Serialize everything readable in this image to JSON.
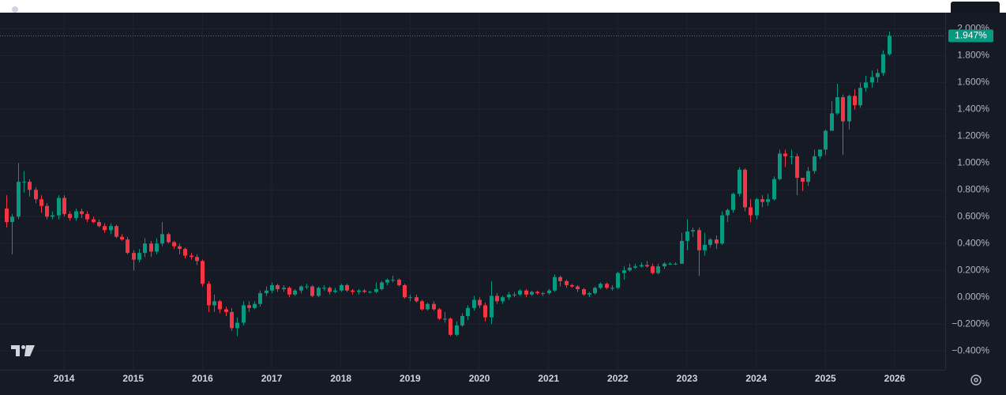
{
  "chart_data": {
    "type": "candlestick",
    "up_color": "#089981",
    "down_color": "#f23645",
    "grid": true,
    "xlim": [
      2013.075,
      2026.73
    ],
    "xticks": [
      2014,
      2015,
      2016,
      2017,
      2018,
      2019,
      2020,
      2021,
      2022,
      2023,
      2024,
      2025,
      2026
    ],
    "ylim": [
      -0.54,
      2.12
    ],
    "yticks": [
      {
        "value": -0.4,
        "label": "−0.400%"
      },
      {
        "value": -0.2,
        "label": "−0.200%"
      },
      {
        "value": 0,
        "label": "0.000%"
      },
      {
        "value": 0.2,
        "label": "0.200%"
      },
      {
        "value": 0.4,
        "label": "0.400%"
      },
      {
        "value": 0.6,
        "label": "0.600%"
      },
      {
        "value": 0.8,
        "label": "0.800%"
      },
      {
        "value": 1.0,
        "label": "1.000%"
      },
      {
        "value": 1.2,
        "label": "1.200%"
      },
      {
        "value": 1.4,
        "label": "1.400%"
      },
      {
        "value": 1.6,
        "label": "1.600%"
      },
      {
        "value": 1.8,
        "label": "1.800%"
      },
      {
        "value": 2.0,
        "label": "2.000%"
      }
    ],
    "last_price": {
      "value": 1.947,
      "label": "1.947%"
    },
    "x": [
      2013.167,
      2013.25,
      2013.333,
      2013.417,
      2013.5,
      2013.583,
      2013.667,
      2013.75,
      2013.833,
      2013.917,
      2014.0,
      2014.083,
      2014.167,
      2014.25,
      2014.333,
      2014.417,
      2014.5,
      2014.583,
      2014.667,
      2014.75,
      2014.833,
      2014.917,
      2015.0,
      2015.083,
      2015.167,
      2015.25,
      2015.333,
      2015.417,
      2015.5,
      2015.583,
      2015.667,
      2015.75,
      2015.833,
      2015.917,
      2016.0,
      2016.083,
      2016.167,
      2016.25,
      2016.333,
      2016.417,
      2016.5,
      2016.583,
      2016.667,
      2016.75,
      2016.833,
      2016.917,
      2017.0,
      2017.083,
      2017.167,
      2017.25,
      2017.333,
      2017.417,
      2017.5,
      2017.583,
      2017.667,
      2017.75,
      2017.833,
      2017.917,
      2018.0,
      2018.083,
      2018.167,
      2018.25,
      2018.333,
      2018.417,
      2018.5,
      2018.583,
      2018.667,
      2018.75,
      2018.833,
      2018.917,
      2019.0,
      2019.083,
      2019.167,
      2019.25,
      2019.333,
      2019.417,
      2019.5,
      2019.583,
      2019.667,
      2019.75,
      2019.833,
      2019.917,
      2020.0,
      2020.083,
      2020.167,
      2020.25,
      2020.333,
      2020.417,
      2020.5,
      2020.583,
      2020.667,
      2020.75,
      2020.833,
      2020.917,
      2021.0,
      2021.083,
      2021.167,
      2021.25,
      2021.333,
      2021.417,
      2021.5,
      2021.583,
      2021.667,
      2021.75,
      2021.833,
      2021.917,
      2022.0,
      2022.083,
      2022.167,
      2022.25,
      2022.333,
      2022.417,
      2022.5,
      2022.583,
      2022.667,
      2022.75,
      2022.833,
      2022.917,
      2023.0,
      2023.083,
      2023.167,
      2023.25,
      2023.333,
      2023.417,
      2023.5,
      2023.583,
      2023.667,
      2023.75,
      2023.833,
      2023.917,
      2024.0,
      2024.083,
      2024.167,
      2024.25,
      2024.333,
      2024.417,
      2024.5,
      2024.583,
      2024.667,
      2024.75,
      2024.833,
      2024.917,
      2025.0,
      2025.083,
      2025.167,
      2025.25,
      2025.333,
      2025.417,
      2025.5,
      2025.583,
      2025.667,
      2025.75,
      2025.833,
      2025.917
    ],
    "open": [
      0.66,
      0.56,
      0.6,
      0.86,
      0.86,
      0.8,
      0.73,
      0.68,
      0.6,
      0.61,
      0.74,
      0.62,
      0.59,
      0.64,
      0.62,
      0.58,
      0.56,
      0.53,
      0.5,
      0.53,
      0.45,
      0.43,
      0.33,
      0.28,
      0.33,
      0.4,
      0.34,
      0.4,
      0.47,
      0.41,
      0.38,
      0.36,
      0.31,
      0.3,
      0.27,
      0.1,
      -0.06,
      -0.03,
      -0.09,
      -0.11,
      -0.23,
      -0.19,
      -0.06,
      -0.08,
      -0.05,
      0.03,
      0.05,
      0.09,
      0.06,
      0.07,
      0.02,
      0.05,
      0.08,
      0.08,
      0.01,
      0.07,
      0.07,
      0.04,
      0.05,
      0.09,
      0.05,
      0.04,
      0.05,
      0.04,
      0.04,
      0.06,
      0.11,
      0.13,
      0.13,
      0.09,
      0.0,
      0.0,
      -0.03,
      -0.09,
      -0.05,
      -0.09,
      -0.16,
      -0.16,
      -0.28,
      -0.21,
      -0.14,
      -0.08,
      -0.02,
      -0.06,
      -0.15,
      0.01,
      -0.03,
      0.0,
      0.02,
      0.02,
      0.05,
      0.02,
      0.04,
      0.03,
      0.03,
      0.05,
      0.15,
      0.12,
      0.09,
      0.08,
      0.06,
      0.02,
      0.03,
      0.07,
      0.1,
      0.07,
      0.07,
      0.18,
      0.2,
      0.22,
      0.23,
      0.24,
      0.23,
      0.18,
      0.23,
      0.25,
      0.25,
      0.25,
      0.42,
      0.49,
      0.5,
      0.35,
      0.39,
      0.43,
      0.4,
      0.61,
      0.65,
      0.77,
      0.95,
      0.67,
      0.61,
      0.73,
      0.71,
      0.73,
      0.88,
      1.07,
      1.05,
      1.05,
      0.89,
      0.86,
      0.94,
      1.05,
      1.1,
      1.24,
      1.37,
      1.49,
      1.31,
      1.5,
      1.43,
      1.56,
      1.6,
      1.64,
      1.67,
      1.81
    ],
    "high": [
      0.76,
      0.62,
      1.0,
      0.94,
      0.88,
      0.82,
      0.76,
      0.7,
      0.64,
      0.76,
      0.76,
      0.64,
      0.66,
      0.66,
      0.64,
      0.6,
      0.58,
      0.55,
      0.55,
      0.54,
      0.47,
      0.45,
      0.35,
      0.36,
      0.44,
      0.42,
      0.44,
      0.56,
      0.48,
      0.42,
      0.4,
      0.37,
      0.33,
      0.32,
      0.28,
      0.12,
      0.02,
      -0.02,
      -0.07,
      -0.08,
      -0.15,
      -0.03,
      -0.03,
      -0.03,
      0.05,
      0.08,
      0.11,
      0.1,
      0.09,
      0.08,
      0.06,
      0.09,
      0.1,
      0.09,
      0.08,
      0.09,
      0.08,
      0.07,
      0.1,
      0.1,
      0.06,
      0.06,
      0.06,
      0.05,
      0.11,
      0.12,
      0.14,
      0.16,
      0.14,
      0.1,
      0.02,
      0.02,
      -0.02,
      -0.04,
      -0.03,
      -0.08,
      -0.11,
      -0.15,
      -0.18,
      -0.12,
      -0.06,
      0.01,
      0.0,
      -0.04,
      0.12,
      0.03,
      0.01,
      0.04,
      0.04,
      0.06,
      0.06,
      0.05,
      0.05,
      0.04,
      0.06,
      0.17,
      0.16,
      0.13,
      0.1,
      0.09,
      0.07,
      0.04,
      0.08,
      0.11,
      0.11,
      0.09,
      0.19,
      0.23,
      0.25,
      0.25,
      0.26,
      0.27,
      0.25,
      0.25,
      0.26,
      0.26,
      0.26,
      0.48,
      0.58,
      0.52,
      0.52,
      0.48,
      0.44,
      0.46,
      0.64,
      0.66,
      0.78,
      0.97,
      0.96,
      0.73,
      0.74,
      0.76,
      0.77,
      0.9,
      1.1,
      1.1,
      1.1,
      1.07,
      0.89,
      0.97,
      1.1,
      1.1,
      1.25,
      1.46,
      1.59,
      1.51,
      1.51,
      1.55,
      1.6,
      1.65,
      1.69,
      1.7,
      1.84,
      1.98
    ],
    "low": [
      0.52,
      0.32,
      0.58,
      0.78,
      0.75,
      0.7,
      0.63,
      0.58,
      0.58,
      0.58,
      0.6,
      0.57,
      0.57,
      0.59,
      0.56,
      0.55,
      0.52,
      0.48,
      0.47,
      0.44,
      0.42,
      0.32,
      0.2,
      0.26,
      0.3,
      0.3,
      0.32,
      0.38,
      0.4,
      0.36,
      0.32,
      0.29,
      0.28,
      0.24,
      0.08,
      -0.11,
      -0.11,
      -0.12,
      -0.14,
      -0.25,
      -0.29,
      -0.21,
      -0.11,
      -0.09,
      -0.07,
      0.01,
      0.03,
      0.04,
      0.04,
      0.0,
      0.01,
      0.03,
      0.06,
      0.0,
      0.0,
      0.05,
      0.02,
      0.03,
      0.04,
      0.04,
      0.02,
      0.02,
      0.03,
      0.03,
      0.03,
      0.05,
      0.09,
      0.11,
      0.08,
      -0.01,
      -0.03,
      -0.04,
      -0.1,
      -0.1,
      -0.1,
      -0.17,
      -0.19,
      -0.29,
      -0.29,
      -0.22,
      -0.17,
      -0.1,
      -0.08,
      -0.18,
      -0.2,
      -0.05,
      -0.05,
      -0.02,
      0.0,
      0.01,
      0.0,
      0.01,
      0.02,
      0.01,
      0.02,
      0.04,
      0.08,
      0.07,
      0.07,
      0.04,
      0.01,
      0.0,
      0.02,
      0.06,
      0.06,
      0.05,
      0.06,
      0.13,
      0.19,
      0.21,
      0.22,
      0.22,
      0.17,
      0.17,
      0.21,
      0.24,
      0.24,
      0.25,
      0.35,
      0.45,
      0.16,
      0.31,
      0.37,
      0.36,
      0.39,
      0.56,
      0.63,
      0.75,
      0.64,
      0.56,
      0.58,
      0.67,
      0.68,
      0.72,
      0.87,
      0.97,
      0.99,
      0.76,
      0.79,
      0.83,
      0.92,
      1.03,
      1.06,
      1.24,
      1.36,
      1.06,
      1.25,
      1.4,
      1.41,
      1.53,
      1.56,
      1.6,
      1.65,
      1.8
    ],
    "close": [
      0.56,
      0.6,
      0.86,
      0.86,
      0.8,
      0.73,
      0.68,
      0.6,
      0.61,
      0.74,
      0.62,
      0.59,
      0.64,
      0.62,
      0.58,
      0.56,
      0.53,
      0.5,
      0.53,
      0.45,
      0.43,
      0.33,
      0.28,
      0.33,
      0.4,
      0.34,
      0.4,
      0.47,
      0.41,
      0.38,
      0.36,
      0.31,
      0.3,
      0.27,
      0.1,
      -0.06,
      -0.03,
      -0.09,
      -0.11,
      -0.23,
      -0.19,
      -0.06,
      -0.08,
      -0.05,
      0.03,
      0.05,
      0.09,
      0.06,
      0.07,
      0.02,
      0.05,
      0.08,
      0.08,
      0.01,
      0.07,
      0.07,
      0.04,
      0.05,
      0.09,
      0.05,
      0.04,
      0.05,
      0.04,
      0.04,
      0.06,
      0.11,
      0.13,
      0.13,
      0.09,
      0.0,
      0.0,
      -0.03,
      -0.09,
      -0.05,
      -0.09,
      -0.16,
      -0.16,
      -0.28,
      -0.21,
      -0.14,
      -0.08,
      -0.02,
      -0.06,
      -0.15,
      0.01,
      -0.03,
      0.0,
      0.02,
      0.02,
      0.05,
      0.02,
      0.04,
      0.03,
      0.03,
      0.05,
      0.15,
      0.12,
      0.09,
      0.08,
      0.06,
      0.02,
      0.03,
      0.07,
      0.1,
      0.07,
      0.07,
      0.18,
      0.2,
      0.22,
      0.23,
      0.24,
      0.23,
      0.18,
      0.23,
      0.25,
      0.25,
      0.25,
      0.42,
      0.49,
      0.5,
      0.35,
      0.39,
      0.43,
      0.4,
      0.61,
      0.65,
      0.77,
      0.95,
      0.67,
      0.61,
      0.73,
      0.71,
      0.73,
      0.88,
      1.07,
      1.05,
      1.05,
      0.89,
      0.86,
      0.94,
      1.05,
      1.1,
      1.24,
      1.37,
      1.49,
      1.31,
      1.5,
      1.43,
      1.56,
      1.6,
      1.64,
      1.67,
      1.81,
      1.947
    ]
  }
}
